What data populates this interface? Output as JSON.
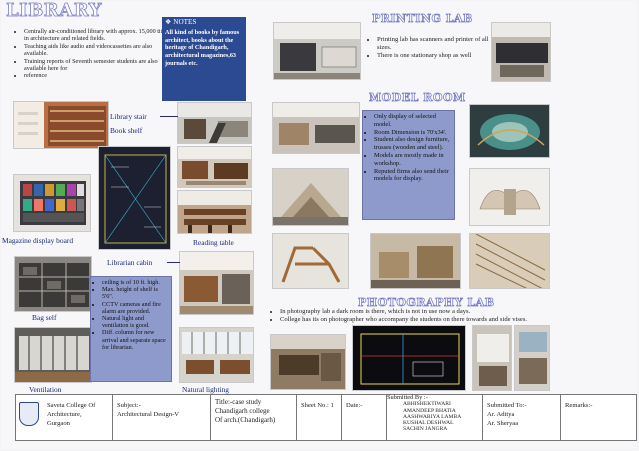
{
  "library": {
    "title": "LIBRARY",
    "bullets": [
      "Centrally air-conditioned library with approx. 15,000 titles in architecture and related fields.",
      "Teaching aids like audio and videocassettes are also available.",
      "Training reports of Seventh semester students are also available here for",
      "reference"
    ],
    "notes": {
      "title": "NOTES",
      "body": "All kind of books by famous architect, books about the heritage of Chandigarh, architectural magazines,63 journals etc."
    },
    "labels": {
      "library_stair": "Library stair",
      "book_shelf": "Book shelf",
      "magazine_board": "Magazine display board",
      "reading_table": "Reading table",
      "librarian_cabin": "Librarian cabin",
      "bag_self": "Bag self",
      "ventilation": "Ventilation",
      "natural_lighting": "Natural lighting"
    },
    "cabin_bullets": [
      "ceiling is of 10 ft. high.",
      "Max. height of shelf is 5'6\".",
      "CCTV cameras and fire alarm are provided.",
      "Natural light and ventilation is good.",
      "Diff. column for new arrival and separate space for librarian."
    ]
  },
  "printing_lab": {
    "title": "PRINTING LAB",
    "bullets": [
      "Printing lab has scanners and printer of all sizes.",
      "There is one stationary shop as well"
    ]
  },
  "model_room": {
    "title": "MODEL ROOM",
    "bullets": [
      "Only display of selected model.",
      "Room Dimension is 70'x34'.",
      "Student also design furniture, trusses (wooden and steel).",
      "Models are mostly made in workshop.",
      "Reputed firms also send their models for display."
    ]
  },
  "photography_lab": {
    "title": "PHOTOGRAPHY LAB",
    "bullets": [
      "In photography lab a dark room is there, which is not in use now a days.",
      "College has its on photographer who accompany the students on there towards and side vises."
    ]
  },
  "footer": {
    "college": [
      "Saveta College Of",
      "Architecture,",
      "Gurgaon"
    ],
    "subject": [
      "Subject:-",
      "Architectural Design-V"
    ],
    "title": [
      "Title:-case study",
      "Chandigarh college",
      "Of arch.(Chandigarh)"
    ],
    "sheet": "Sheet No.: 1",
    "date": "Date:-",
    "submitted_by_label": "Submitted By :-",
    "submitted_by": [
      "ABHISHEKTIWARI",
      "AMANDEEP BHATIA",
      "AASHWARIYA LAMBA",
      "KUSHAL DESHWAL",
      "SACHIN JANGRA"
    ],
    "submitted_to": [
      "Submitted To:-",
      "Ar. Aditya",
      "Ar. Sheryaa"
    ],
    "remarks": "Remarks:-"
  },
  "colors": {
    "notes_bg": "#2b4a91",
    "callout_bg": "#8e9acc",
    "heading_outline": "#7b7fc6"
  }
}
